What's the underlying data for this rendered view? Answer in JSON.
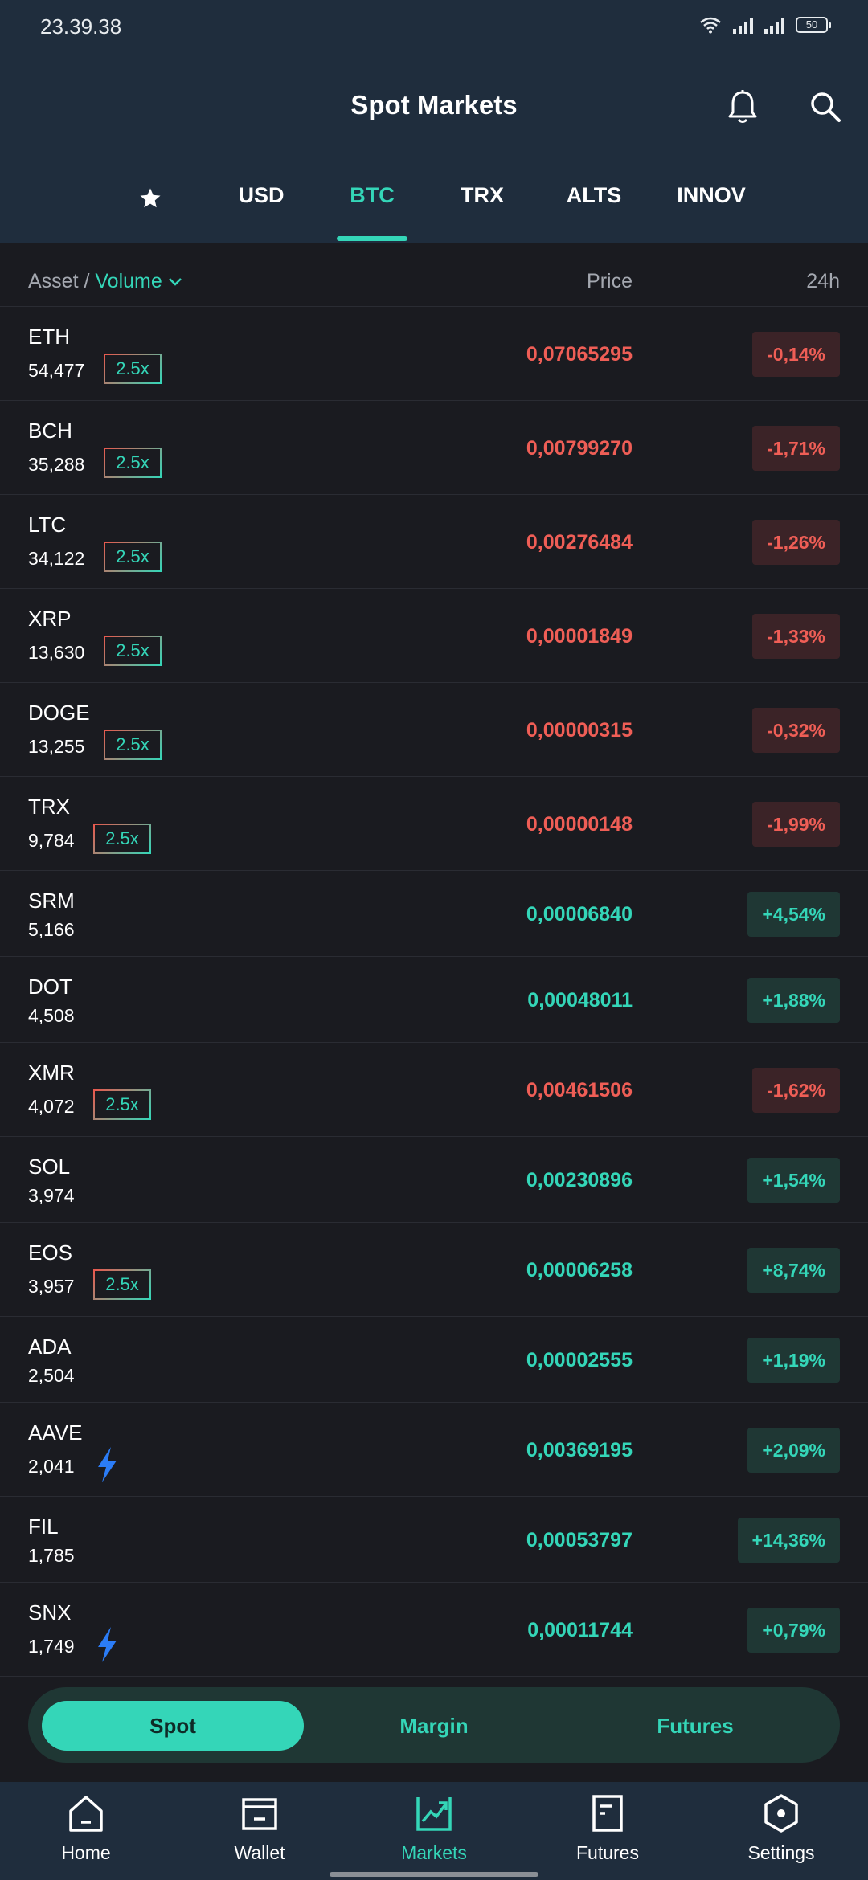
{
  "status_bar": {
    "time": "23.39.38",
    "battery": "50"
  },
  "header": {
    "title": "Spot Markets"
  },
  "tabs": [
    {
      "label": "",
      "icon": "star-icon"
    },
    {
      "label": "USD"
    },
    {
      "label": "BTC",
      "active": true
    },
    {
      "label": "TRX"
    },
    {
      "label": "ALTS"
    },
    {
      "label": "INNOV"
    }
  ],
  "columns": {
    "asset": "Asset /",
    "volume": "Volume",
    "price": "Price",
    "change": "24h"
  },
  "rows": [
    {
      "symbol": "ETH",
      "volume": "54,477",
      "badge": "2.5x",
      "price": "0,07065295",
      "change": "-0,14%",
      "dir": "neg"
    },
    {
      "symbol": "BCH",
      "volume": "35,288",
      "badge": "2.5x",
      "price": "0,00799270",
      "change": "-1,71%",
      "dir": "neg"
    },
    {
      "symbol": "LTC",
      "volume": "34,122",
      "badge": "2.5x",
      "price": "0,00276484",
      "change": "-1,26%",
      "dir": "neg"
    },
    {
      "symbol": "XRP",
      "volume": "13,630",
      "badge": "2.5x",
      "price": "0,00001849",
      "change": "-1,33%",
      "dir": "neg"
    },
    {
      "symbol": "DOGE",
      "volume": "13,255",
      "badge": "2.5x",
      "price": "0,00000315",
      "change": "-0,32%",
      "dir": "neg"
    },
    {
      "symbol": "TRX",
      "volume": "9,784",
      "badge": "2.5x",
      "price": "0,00000148",
      "change": "-1,99%",
      "dir": "neg"
    },
    {
      "symbol": "SRM",
      "volume": "5,166",
      "badge": "",
      "price": "0,00006840",
      "change": "+4,54%",
      "dir": "pos"
    },
    {
      "symbol": "DOT",
      "volume": "4,508",
      "badge": "",
      "price": "0,00048011",
      "change": "+1,88%",
      "dir": "pos"
    },
    {
      "symbol": "XMR",
      "volume": "4,072",
      "badge": "2.5x",
      "price": "0,00461506",
      "change": "-1,62%",
      "dir": "neg"
    },
    {
      "symbol": "SOL",
      "volume": "3,974",
      "badge": "",
      "price": "0,00230896",
      "change": "+1,54%",
      "dir": "pos"
    },
    {
      "symbol": "EOS",
      "volume": "3,957",
      "badge": "2.5x",
      "price": "0,00006258",
      "change": "+8,74%",
      "dir": "pos"
    },
    {
      "symbol": "ADA",
      "volume": "2,504",
      "badge": "",
      "price": "0,00002555",
      "change": "+1,19%",
      "dir": "pos"
    },
    {
      "symbol": "AAVE",
      "volume": "2,041",
      "badge": "",
      "bolt": true,
      "price": "0,00369195",
      "change": "+2,09%",
      "dir": "pos"
    },
    {
      "symbol": "FIL",
      "volume": "1,785",
      "badge": "",
      "price": "0,00053797",
      "change": "+14,36%",
      "dir": "pos"
    },
    {
      "symbol": "SNX",
      "volume": "1,749",
      "badge": "",
      "bolt": true,
      "price": "0,00011744",
      "change": "+0,79%",
      "dir": "pos"
    }
  ],
  "segment": {
    "spot": "Spot",
    "margin": "Margin",
    "futures": "Futures",
    "active": "spot"
  },
  "bottom_nav": [
    {
      "label": "Home",
      "icon": "home-icon"
    },
    {
      "label": "Wallet",
      "icon": "wallet-icon"
    },
    {
      "label": "Markets",
      "icon": "markets-icon",
      "active": true
    },
    {
      "label": "Futures",
      "icon": "futures-icon"
    },
    {
      "label": "Settings",
      "icon": "settings-icon"
    }
  ],
  "colors": {
    "accent": "#34d6b8",
    "negative": "#ef5e56",
    "header_bg": "#1f2d3d",
    "bg": "#1a1b20"
  }
}
